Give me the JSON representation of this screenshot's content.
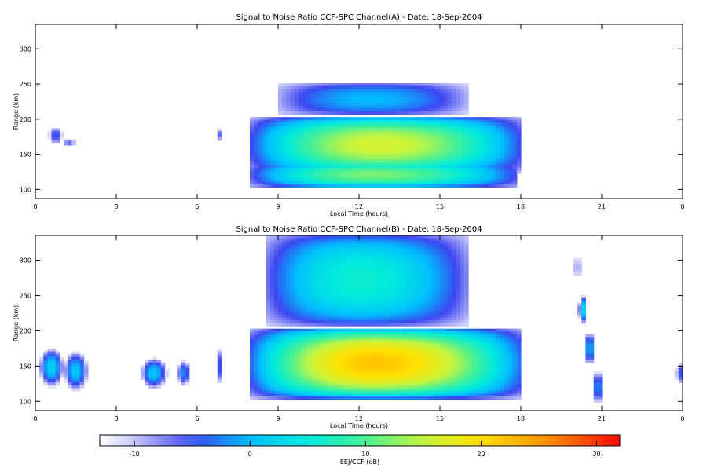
{
  "chart_data": [
    {
      "type": "heatmap",
      "title": "Signal to Noise Ratio CCF-SPC Channel(A) - Date: 18-Sep-2004",
      "xlabel": "Local Time (hours)",
      "ylabel": "Range (km)",
      "xlim": [
        0,
        24
      ],
      "ylim": [
        87,
        335
      ],
      "x_ticks": [
        "0",
        "3",
        "6",
        "9",
        "12",
        "15",
        "18",
        "21",
        "0"
      ],
      "y_ticks": [
        "100",
        "150",
        "200",
        "250",
        "300"
      ],
      "layers": [
        {
          "x0": 8.0,
          "x1": 18.0,
          "center": 12.8,
          "y_low": 122,
          "y_high": 205,
          "peak": 16
        },
        {
          "x0": 8.0,
          "x1": 17.9,
          "center": 12.5,
          "y_low": 102,
          "y_high": 140,
          "peak": 12
        },
        {
          "x0": 9.0,
          "x1": 16.0,
          "center": 12.4,
          "y_low": 205,
          "y_high": 252,
          "peak": 0
        }
      ],
      "blobs": [
        {
          "x": 0.75,
          "y": 177,
          "rx": 0.25,
          "ry": 12,
          "v": -4
        },
        {
          "x": 1.25,
          "y": 167,
          "rx": 0.25,
          "ry": 6,
          "v": -6
        },
        {
          "x": 6.8,
          "y": 178,
          "rx": 0.12,
          "ry": 8,
          "v": -6
        }
      ]
    },
    {
      "type": "heatmap",
      "title": "Signal to Noise Ratio CCF-SPC Channel(B) - Date: 18-Sep-2004",
      "xlabel": "Local Time (hours)",
      "ylabel": "Range (km)",
      "xlim": [
        0,
        24
      ],
      "ylim": [
        87,
        335
      ],
      "x_ticks": [
        "0",
        "3",
        "6",
        "9",
        "12",
        "15",
        "18",
        "21",
        "0"
      ],
      "y_ticks": [
        "100",
        "150",
        "200",
        "250",
        "300"
      ],
      "layers": [
        {
          "x0": 8.0,
          "x1": 18.0,
          "center": 12.6,
          "y_low": 103,
          "y_high": 205,
          "peak": 22
        },
        {
          "x0": 8.5,
          "x1": 16.0,
          "center": 12.0,
          "y_low": 205,
          "y_high": 340,
          "peak": 6
        }
      ],
      "blobs": [
        {
          "x": 0.6,
          "y": 148,
          "rx": 0.45,
          "ry": 28,
          "v": 2
        },
        {
          "x": 1.5,
          "y": 143,
          "rx": 0.45,
          "ry": 28,
          "v": 1
        },
        {
          "x": 4.4,
          "y": 140,
          "rx": 0.5,
          "ry": 22,
          "v": 1
        },
        {
          "x": 5.5,
          "y": 140,
          "rx": 0.25,
          "ry": 18,
          "v": -2
        },
        {
          "x": 6.8,
          "y": 150,
          "rx": 0.12,
          "ry": 25,
          "v": -4
        },
        {
          "x": 20.3,
          "y": 230,
          "rx": 0.15,
          "ry": 20,
          "v": 3
        },
        {
          "x": 20.55,
          "y": 175,
          "rx": 0.15,
          "ry": 25,
          "v": 2
        },
        {
          "x": 20.85,
          "y": 120,
          "rx": 0.15,
          "ry": 25,
          "v": 0
        },
        {
          "x": 20.1,
          "y": 290,
          "rx": 0.1,
          "ry": 20,
          "v": -6
        },
        {
          "x": 23.9,
          "y": 140,
          "rx": 0.15,
          "ry": 15,
          "v": -4
        }
      ]
    }
  ],
  "colorbar": {
    "label": "EEJ/CCF (dB)",
    "min": -13,
    "max": 32,
    "ticks": [
      "-10",
      "0",
      "10",
      "20",
      "30"
    ],
    "tick_values": [
      -10,
      0,
      10,
      20,
      30
    ]
  }
}
